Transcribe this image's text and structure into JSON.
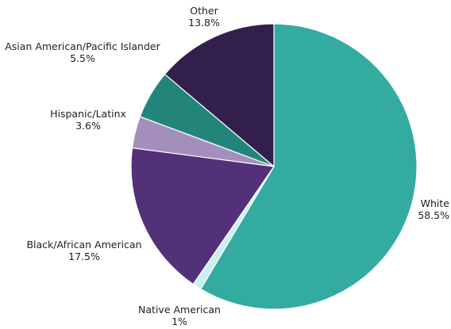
{
  "chart_data": {
    "type": "pie",
    "title": "",
    "slices": [
      {
        "label": "White",
        "value": 58.5,
        "value_label": "58.5%",
        "color": "#33ABA0"
      },
      {
        "label": "Native American",
        "value": 1.0,
        "value_label": "1%",
        "color": "#C8F0EC"
      },
      {
        "label": "Black/African American",
        "value": 17.5,
        "value_label": "17.5%",
        "color": "#53307A"
      },
      {
        "label": "Hispanic/Latinx",
        "value": 3.6,
        "value_label": "3.6%",
        "color": "#A48FBC"
      },
      {
        "label": "Asian American/Pacific Islander",
        "value": 5.5,
        "value_label": "5.5%",
        "color": "#23857A"
      },
      {
        "label": "Other",
        "value": 13.8,
        "value_label": "13.8%",
        "color": "#331F4B"
      }
    ],
    "start_angle": "12 o'clock",
    "direction": "clockwise",
    "legend": "none"
  }
}
